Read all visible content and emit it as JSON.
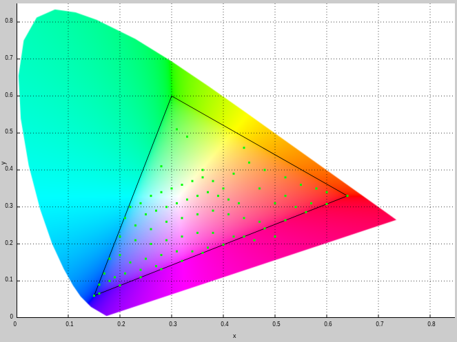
{
  "chart_data": {
    "type": "scatter",
    "title": "",
    "xlabel": "x",
    "ylabel": "y",
    "xlim": [
      0,
      0.848
    ],
    "ylim": [
      0,
      0.85
    ],
    "grid": true,
    "xticks": [
      "0",
      "0.1",
      "0.2",
      "0.3",
      "0.4",
      "0.5",
      "0.6",
      "0.7",
      "0.8"
    ],
    "yticks": [
      "0",
      "0.1",
      "0.2",
      "0.3",
      "0.4",
      "0.5",
      "0.6",
      "0.7",
      "0.8"
    ],
    "spectral_locus": [
      [
        0.1741,
        0.005
      ],
      [
        0.144,
        0.0297
      ],
      [
        0.1241,
        0.0578
      ],
      [
        0.1096,
        0.0868
      ],
      [
        0.0913,
        0.1327
      ],
      [
        0.0687,
        0.2007
      ],
      [
        0.0454,
        0.295
      ],
      [
        0.0235,
        0.4127
      ],
      [
        0.0082,
        0.5384
      ],
      [
        0.0039,
        0.6548
      ],
      [
        0.0139,
        0.7502
      ],
      [
        0.0389,
        0.812
      ],
      [
        0.0743,
        0.8338
      ],
      [
        0.1142,
        0.8262
      ],
      [
        0.1547,
        0.8059
      ],
      [
        0.2296,
        0.7543
      ],
      [
        0.3016,
        0.6923
      ],
      [
        0.3731,
        0.6245
      ],
      [
        0.4441,
        0.5547
      ],
      [
        0.5125,
        0.4866
      ],
      [
        0.5752,
        0.4242
      ],
      [
        0.627,
        0.3725
      ],
      [
        0.6658,
        0.334
      ],
      [
        0.6915,
        0.3083
      ],
      [
        0.719,
        0.2809
      ],
      [
        0.7347,
        0.2653
      ]
    ],
    "gamut_triangle": [
      [
        0.64,
        0.33
      ],
      [
        0.3,
        0.6
      ],
      [
        0.15,
        0.06
      ]
    ],
    "points_color": "#00ff00",
    "points": [
      [
        0.22,
        0.3
      ],
      [
        0.24,
        0.31
      ],
      [
        0.26,
        0.33
      ],
      [
        0.28,
        0.34
      ],
      [
        0.3,
        0.35
      ],
      [
        0.32,
        0.36
      ],
      [
        0.34,
        0.37
      ],
      [
        0.36,
        0.38
      ],
      [
        0.38,
        0.37
      ],
      [
        0.4,
        0.35
      ],
      [
        0.25,
        0.28
      ],
      [
        0.27,
        0.29
      ],
      [
        0.29,
        0.3
      ],
      [
        0.31,
        0.31
      ],
      [
        0.33,
        0.32
      ],
      [
        0.35,
        0.33
      ],
      [
        0.37,
        0.34
      ],
      [
        0.39,
        0.33
      ],
      [
        0.41,
        0.32
      ],
      [
        0.43,
        0.31
      ],
      [
        0.21,
        0.27
      ],
      [
        0.23,
        0.25
      ],
      [
        0.26,
        0.24
      ],
      [
        0.29,
        0.26
      ],
      [
        0.32,
        0.27
      ],
      [
        0.35,
        0.28
      ],
      [
        0.38,
        0.29
      ],
      [
        0.41,
        0.28
      ],
      [
        0.44,
        0.27
      ],
      [
        0.47,
        0.26
      ],
      [
        0.2,
        0.22
      ],
      [
        0.23,
        0.21
      ],
      [
        0.26,
        0.2
      ],
      [
        0.29,
        0.21
      ],
      [
        0.32,
        0.22
      ],
      [
        0.35,
        0.23
      ],
      [
        0.38,
        0.23
      ],
      [
        0.42,
        0.22
      ],
      [
        0.46,
        0.21
      ],
      [
        0.5,
        0.22
      ],
      [
        0.18,
        0.16
      ],
      [
        0.2,
        0.17
      ],
      [
        0.22,
        0.15
      ],
      [
        0.25,
        0.16
      ],
      [
        0.28,
        0.17
      ],
      [
        0.31,
        0.18
      ],
      [
        0.34,
        0.18
      ],
      [
        0.37,
        0.19
      ],
      [
        0.17,
        0.12
      ],
      [
        0.19,
        0.11
      ],
      [
        0.21,
        0.12
      ],
      [
        0.24,
        0.13
      ],
      [
        0.27,
        0.14
      ],
      [
        0.16,
        0.09
      ],
      [
        0.18,
        0.1
      ],
      [
        0.45,
        0.42
      ],
      [
        0.48,
        0.4
      ],
      [
        0.52,
        0.38
      ],
      [
        0.55,
        0.36
      ],
      [
        0.58,
        0.35
      ],
      [
        0.6,
        0.34
      ],
      [
        0.5,
        0.31
      ],
      [
        0.54,
        0.3
      ],
      [
        0.57,
        0.31
      ],
      [
        0.44,
        0.46
      ],
      [
        0.33,
        0.49
      ],
      [
        0.31,
        0.51
      ],
      [
        0.28,
        0.41
      ],
      [
        0.36,
        0.4
      ],
      [
        0.42,
        0.39
      ],
      [
        0.47,
        0.35
      ],
      [
        0.52,
        0.33
      ],
      [
        0.16,
        0.066
      ],
      [
        0.2,
        0.088
      ],
      [
        0.24,
        0.11
      ],
      [
        0.28,
        0.132
      ],
      [
        0.32,
        0.154
      ],
      [
        0.36,
        0.176
      ],
      [
        0.4,
        0.198
      ],
      [
        0.44,
        0.22
      ],
      [
        0.48,
        0.242
      ],
      [
        0.52,
        0.264
      ],
      [
        0.56,
        0.286
      ],
      [
        0.6,
        0.308
      ],
      [
        0.64,
        0.33
      ],
      [
        0.15,
        0.06
      ]
    ]
  }
}
